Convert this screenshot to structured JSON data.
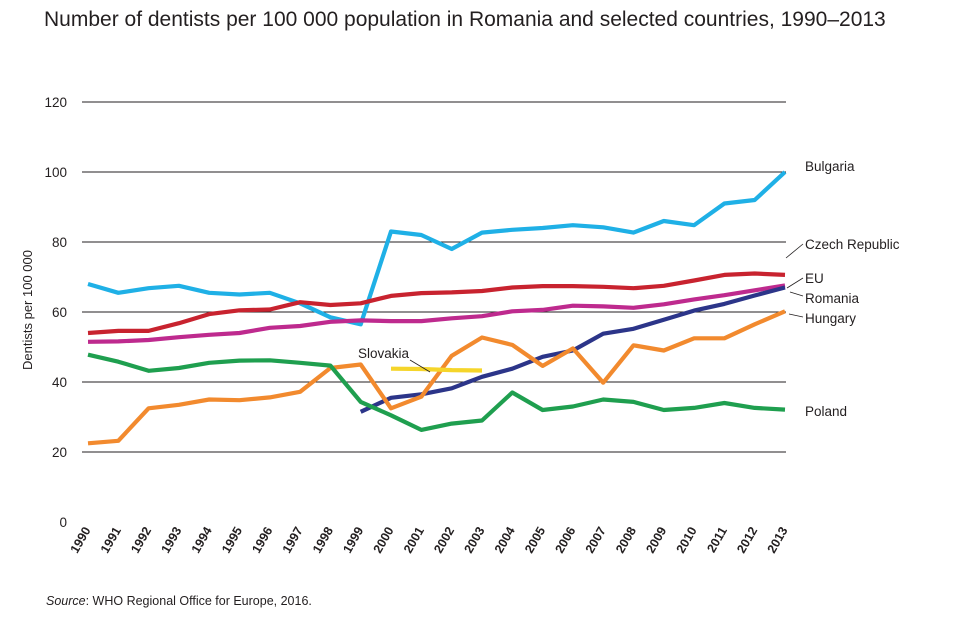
{
  "chart_data": {
    "type": "line",
    "title": "Number of dentists per 100 000 population in Romania and selected countries, 1990–2013",
    "xlabel": "",
    "ylabel": "Dentists per 100 000",
    "ylim": [
      0,
      120
    ],
    "yticks": [
      0,
      20,
      40,
      60,
      80,
      100,
      120
    ],
    "grid": true,
    "x": [
      1990,
      1991,
      1992,
      1993,
      1994,
      1995,
      1996,
      1997,
      1998,
      1999,
      2000,
      2001,
      2002,
      2003,
      2004,
      2005,
      2006,
      2007,
      2008,
      2009,
      2010,
      2011,
      2012,
      2013
    ],
    "series": [
      {
        "name": "Bulgaria",
        "color": "#1fb0e6",
        "values": [
          68,
          65.5,
          66.8,
          67.5,
          65.5,
          65,
          65.5,
          62.5,
          58.5,
          56.5,
          83,
          82,
          78,
          82.7,
          83.5,
          84,
          84.8,
          84.2,
          82.7,
          86,
          84.8,
          91,
          92,
          100
        ]
      },
      {
        "name": "Czech Republic",
        "color": "#c8232f",
        "values": [
          54,
          54.6,
          54.6,
          56.8,
          59.4,
          60.5,
          60.7,
          62.8,
          62,
          62.5,
          64.6,
          65.4,
          65.6,
          66,
          67,
          67.4,
          67.4,
          67.2,
          66.8,
          67.5,
          69,
          70.6,
          71,
          70.6
        ]
      },
      {
        "name": "EU",
        "color": "#be2a8e",
        "values": [
          51.5,
          51.6,
          52,
          52.8,
          53.5,
          54,
          55.5,
          56,
          57.2,
          57.6,
          57.4,
          57.4,
          58.2,
          58.8,
          60.2,
          60.6,
          61.8,
          61.6,
          61.2,
          62.2,
          63.6,
          64.8,
          66.2,
          67.6
        ]
      },
      {
        "name": "Romania",
        "color": "#2c3589",
        "values": [
          null,
          null,
          null,
          null,
          null,
          null,
          null,
          null,
          null,
          31.5,
          35.5,
          36.5,
          38.2,
          41.5,
          43.8,
          47.2,
          49,
          53.8,
          55.2,
          57.8,
          60.4,
          62.3,
          64.7,
          67
        ]
      },
      {
        "name": "Hungary",
        "color": "#f28a2e",
        "values": [
          22.5,
          23.2,
          32.5,
          33.5,
          35,
          34.8,
          35.6,
          37.2,
          44,
          45,
          32.5,
          35.8,
          47.5,
          52.7,
          50.6,
          44.6,
          49.6,
          39.8,
          50.5,
          49,
          52.5,
          52.5,
          56.5,
          60.2
        ]
      },
      {
        "name": "Slovakia",
        "color": "#f5d52a",
        "values": [
          null,
          null,
          null,
          null,
          null,
          null,
          null,
          null,
          null,
          null,
          43.8,
          43.7,
          43.4,
          43.3,
          null,
          null,
          null,
          null,
          null,
          null,
          null,
          null,
          null,
          null
        ]
      },
      {
        "name": "Poland",
        "color": "#1f9f4f",
        "values": [
          47.8,
          45.8,
          43.2,
          44,
          45.5,
          46.1,
          46.2,
          45.5,
          44.7,
          34.3,
          30.5,
          26.3,
          28.1,
          29,
          37,
          32,
          33,
          35,
          34.3,
          32,
          32.6,
          34,
          32.6,
          32.1
        ]
      }
    ],
    "labels": {
      "Bulgaria": "Bulgaria",
      "Czech Republic": "Czech Republic",
      "EU": "EU",
      "Romania": "Romania",
      "Hungary": "Hungary",
      "Slovakia": "Slovakia",
      "Poland": "Poland"
    },
    "source_label": "Source",
    "source_text": ": WHO Regional Office for Europe, 2016."
  }
}
